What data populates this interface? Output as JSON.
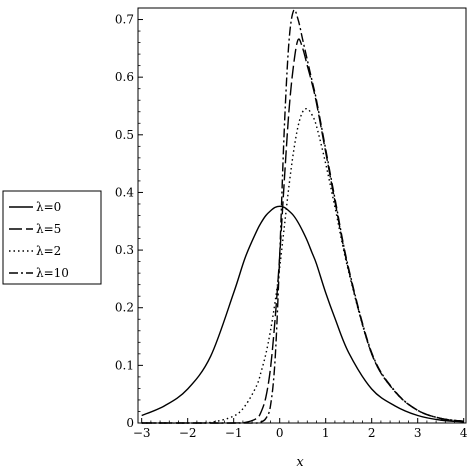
{
  "chart_data": {
    "type": "line",
    "title": "",
    "xlabel": "x",
    "ylabel": "",
    "xlim": [
      -3.08,
      4.05
    ],
    "ylim": [
      0,
      0.72
    ],
    "xticks": [
      -3,
      -2,
      -1,
      0,
      1,
      2,
      3,
      4
    ],
    "yticks": [
      0,
      0.1,
      0.2,
      0.3,
      0.4,
      0.5,
      0.6,
      0.7
    ],
    "xtick_labels": [
      "−3",
      "−2",
      "−1",
      "0",
      "1",
      "2",
      "3",
      "4"
    ],
    "ytick_labels": [
      "0",
      "0.1",
      "0.2",
      "0.3",
      "0.4",
      "0.5",
      "0.6",
      "0.7"
    ],
    "grid": false,
    "legend_position": "outside-left",
    "x": [
      -3.0,
      -2.5,
      -2.0,
      -1.5,
      -1.0,
      -0.75,
      -0.5,
      -0.4,
      -0.3,
      -0.2,
      -0.1,
      0.0,
      0.1,
      0.2,
      0.3,
      0.4,
      0.5,
      0.6,
      0.7,
      0.8,
      1.0,
      1.2,
      1.5,
      2.0,
      2.5,
      3.0,
      3.5,
      4.0
    ],
    "series": [
      {
        "name": "λ=0",
        "dash": "solid",
        "values": [
          0.013,
          0.03,
          0.059,
          0.116,
          0.226,
          0.287,
          0.333,
          0.348,
          0.36,
          0.368,
          0.374,
          0.376,
          0.374,
          0.368,
          0.36,
          0.348,
          0.333,
          0.316,
          0.296,
          0.276,
          0.226,
          0.182,
          0.122,
          0.059,
          0.03,
          0.013,
          0.005,
          0.002
        ]
      },
      {
        "name": "λ=5",
        "dash": "longdash",
        "values": [
          0.0,
          0.0,
          0.0,
          0.0,
          0.0,
          0.001,
          0.008,
          0.02,
          0.045,
          0.095,
          0.18,
          0.29,
          0.42,
          0.54,
          0.62,
          0.665,
          0.65,
          0.62,
          0.59,
          0.555,
          0.47,
          0.385,
          0.265,
          0.12,
          0.055,
          0.022,
          0.008,
          0.003
        ]
      },
      {
        "name": "λ=2",
        "dash": "dotted",
        "values": [
          0.0,
          0.0,
          0.0,
          0.001,
          0.012,
          0.03,
          0.065,
          0.09,
          0.12,
          0.16,
          0.21,
          0.27,
          0.34,
          0.41,
          0.47,
          0.515,
          0.54,
          0.545,
          0.535,
          0.515,
          0.45,
          0.375,
          0.262,
          0.12,
          0.055,
          0.022,
          0.008,
          0.003
        ]
      },
      {
        "name": "λ=10",
        "dash": "dashdot",
        "values": [
          0.0,
          0.0,
          0.0,
          0.0,
          0.0,
          0.0,
          0.0,
          0.002,
          0.008,
          0.03,
          0.11,
          0.29,
          0.51,
          0.66,
          0.715,
          0.7,
          0.665,
          0.63,
          0.595,
          0.56,
          0.475,
          0.39,
          0.268,
          0.122,
          0.056,
          0.022,
          0.008,
          0.003
        ]
      }
    ]
  }
}
